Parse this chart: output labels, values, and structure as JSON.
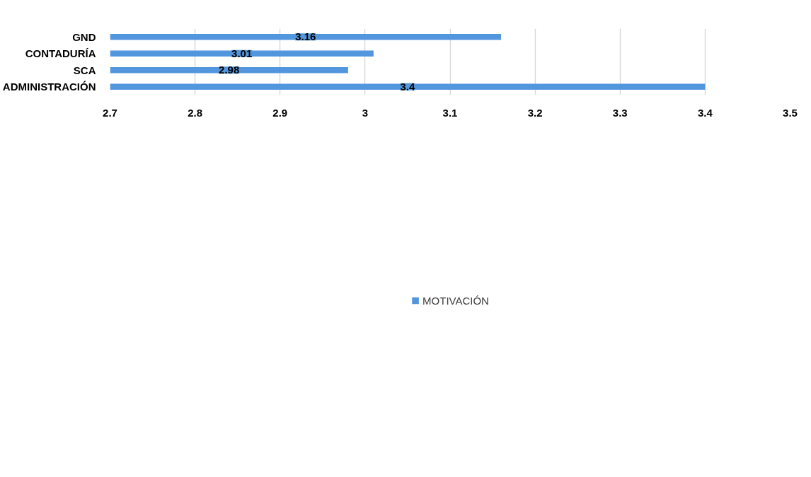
{
  "chart_data": {
    "type": "bar",
    "orientation": "horizontal",
    "categories": [
      "GND",
      "CONTADURÍA",
      "SCA",
      "ADMINISTRACIÓN"
    ],
    "series": [
      {
        "name": "MOTIVACIÓN",
        "color": "#5296dd",
        "values": [
          3.16,
          3.01,
          2.98,
          3.4
        ]
      }
    ],
    "xlim": [
      2.7,
      3.5
    ],
    "xticks": [
      2.7,
      2.8,
      2.9,
      3,
      3.1,
      3.2,
      3.3,
      3.4,
      3.5
    ],
    "grid": "x",
    "legend": "bottom",
    "data_labels": true
  }
}
